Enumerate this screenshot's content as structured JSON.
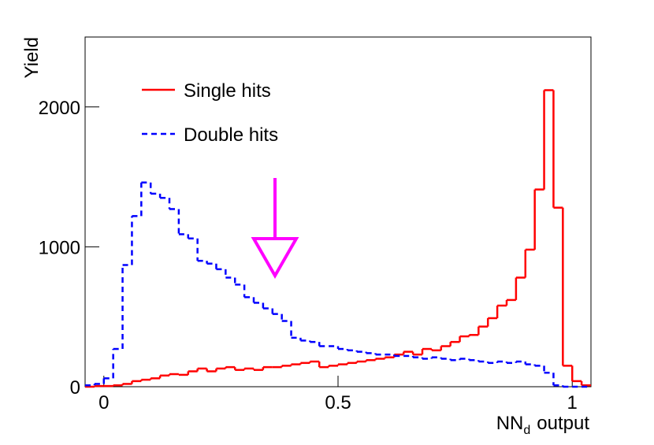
{
  "chart_data": {
    "type": "histogram",
    "x_label": [
      "NN",
      "d",
      "output"
    ],
    "y_label": "Yield",
    "bins": [
      -0.04,
      -0.02,
      0,
      0.02,
      0.04,
      0.06,
      0.08,
      0.1,
      0.12,
      0.14,
      0.16,
      0.18,
      0.2,
      0.22,
      0.24,
      0.26,
      0.28,
      0.3,
      0.32,
      0.34,
      0.36,
      0.38,
      0.4,
      0.42,
      0.44,
      0.46,
      0.48,
      0.5,
      0.52,
      0.54,
      0.56,
      0.58,
      0.6,
      0.62,
      0.64,
      0.66,
      0.68,
      0.7,
      0.72,
      0.74,
      0.76,
      0.78,
      0.8,
      0.82,
      0.84,
      0.86,
      0.88,
      0.9,
      0.92,
      0.94,
      0.96,
      0.98,
      1,
      1.02,
      1.04
    ],
    "series": [
      {
        "name": "Single hits",
        "color": "#ff0000",
        "dashed": false,
        "values": [
          0,
          5,
          5,
          10,
          20,
          40,
          50,
          60,
          80,
          90,
          85,
          110,
          130,
          110,
          130,
          140,
          120,
          130,
          120,
          140,
          140,
          150,
          160,
          170,
          180,
          140,
          150,
          160,
          170,
          180,
          190,
          200,
          210,
          230,
          250,
          230,
          270,
          260,
          290,
          320,
          360,
          370,
          430,
          490,
          580,
          620,
          780,
          980,
          1410,
          2120,
          1280,
          150,
          40,
          10
        ]
      },
      {
        "name": "Double hits",
        "color": "#0000ff",
        "dashed": true,
        "values": [
          10,
          20,
          60,
          270,
          870,
          1220,
          1460,
          1380,
          1350,
          1270,
          1090,
          1060,
          900,
          880,
          840,
          780,
          730,
          640,
          600,
          560,
          520,
          470,
          350,
          330,
          320,
          290,
          290,
          270,
          260,
          250,
          240,
          230,
          230,
          220,
          220,
          210,
          200,
          210,
          200,
          190,
          200,
          190,
          180,
          170,
          180,
          170,
          180,
          160,
          150,
          100,
          10,
          0,
          0,
          0
        ]
      }
    ],
    "xlim": [
      -0.04,
      1.04
    ],
    "xticks": [
      0,
      0.5,
      1
    ],
    "ylim": [
      0,
      2500
    ],
    "yticks": [
      0,
      1000,
      2000
    ],
    "legend": "top-left"
  }
}
